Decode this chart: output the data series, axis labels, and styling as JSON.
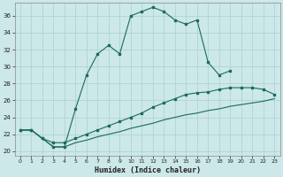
{
  "xlabel": "Humidex (Indice chaleur)",
  "background_color": "#cce8e8",
  "grid_color": "#aad0d0",
  "line_color": "#1a6b5a",
  "xlim": [
    -0.5,
    23.5
  ],
  "ylim": [
    19.5,
    37.5
  ],
  "xticks": [
    0,
    1,
    2,
    3,
    4,
    5,
    6,
    7,
    8,
    9,
    10,
    11,
    12,
    13,
    14,
    15,
    16,
    17,
    18,
    19,
    20,
    21,
    22,
    23
  ],
  "yticks": [
    20,
    22,
    24,
    26,
    28,
    30,
    32,
    34,
    36
  ],
  "series1_x": [
    0,
    1,
    2,
    3,
    4,
    5,
    6,
    7,
    8,
    9,
    10,
    11,
    12,
    13,
    14,
    15,
    16,
    17,
    18,
    19,
    20,
    21,
    22
  ],
  "series1_y": [
    22.5,
    22.5,
    21.5,
    20.5,
    20.5,
    25.0,
    29.0,
    31.5,
    32.5,
    31.5,
    36.0,
    36.5,
    37.0,
    36.5,
    35.5,
    35.0,
    35.5,
    30.5,
    29.0,
    29.5,
    null,
    null,
    null
  ],
  "series2_x": [
    0,
    1,
    2,
    3,
    4,
    5,
    6,
    7,
    8,
    9,
    10,
    11,
    12,
    13,
    14,
    15,
    16,
    17,
    18,
    19,
    20,
    21,
    22,
    23
  ],
  "series2_y": [
    22.5,
    22.5,
    21.5,
    21.0,
    21.0,
    21.5,
    22.0,
    22.5,
    23.0,
    23.5,
    24.0,
    24.5,
    25.2,
    25.7,
    26.2,
    26.7,
    26.9,
    27.0,
    27.3,
    27.5,
    27.5,
    27.5,
    27.3,
    26.7
  ],
  "series3_x": [
    0,
    1,
    2,
    3,
    4,
    5,
    6,
    7,
    8,
    9,
    10,
    11,
    12,
    13,
    14,
    15,
    16,
    17,
    18,
    19,
    20,
    21,
    22,
    23
  ],
  "series3_y": [
    22.5,
    22.5,
    21.5,
    20.5,
    20.5,
    21.0,
    21.3,
    21.7,
    22.0,
    22.3,
    22.7,
    23.0,
    23.3,
    23.7,
    24.0,
    24.3,
    24.5,
    24.8,
    25.0,
    25.3,
    25.5,
    25.7,
    25.9,
    26.2
  ]
}
